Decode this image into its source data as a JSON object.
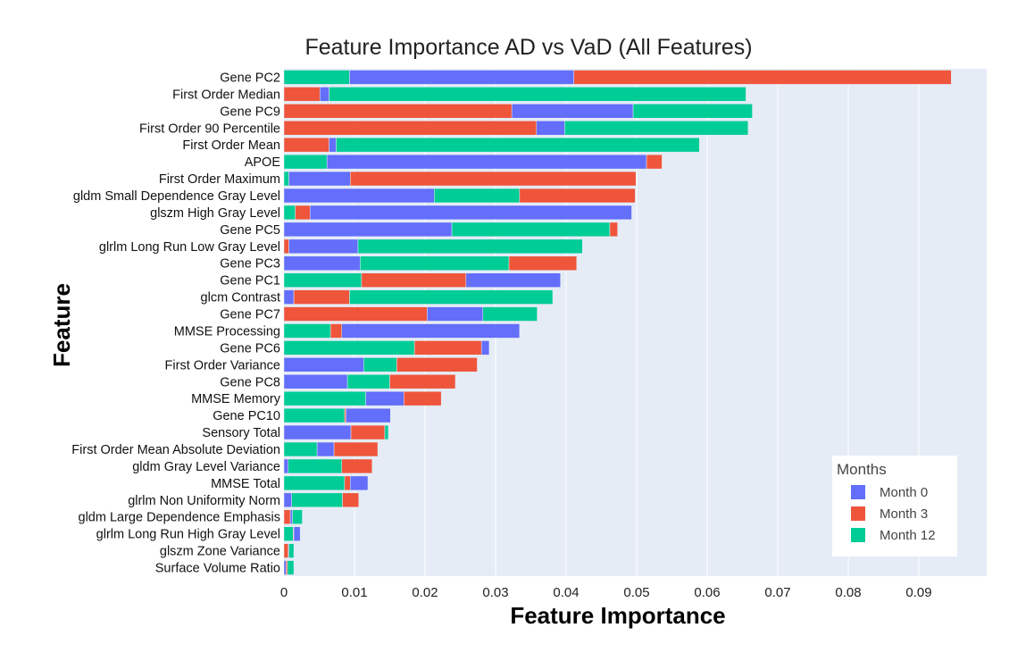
{
  "chart_data": {
    "type": "bar",
    "orientation": "horizontal",
    "stacked": true,
    "title": "Feature Importance AD vs VaD (All Features)",
    "xlabel": "Feature Importance",
    "ylabel": "Feature",
    "xlim": [
      0,
      0.1
    ],
    "x_ticks": [
      0,
      0.01,
      0.02,
      0.03,
      0.04,
      0.05,
      0.06,
      0.07,
      0.08,
      0.09
    ],
    "x_tick_labels": [
      "0",
      "0.01",
      "0.02",
      "0.03",
      "0.04",
      "0.05",
      "0.06",
      "0.07",
      "0.08",
      "0.09"
    ],
    "grid": true,
    "legend": {
      "title": "Months",
      "position": "bottom-right"
    },
    "categories": [
      "Gene PC2",
      "First Order Median",
      "Gene PC9",
      "First Order 90 Percentile",
      "First Order Mean",
      "APOE",
      "First Order Maximum",
      "gldm Small Dependence Gray Level",
      "glszm High Gray Level",
      "Gene PC5",
      "glrlm Long Run Low Gray Level",
      "Gene PC3",
      "Gene PC1",
      "glcm Contrast",
      "Gene PC7",
      "MMSE Processing",
      "Gene PC6",
      "First Order Variance",
      "Gene PC8",
      "MMSE Memory",
      "Gene PC10",
      "Sensory Total",
      "First Order Mean Absolute Deviation",
      "gldm Gray Level Variance",
      "MMSE Total",
      "glrlm Non Uniformity Norm",
      "gldm Large Dependence Emphasis",
      "glrlm Long Run High Gray Level",
      "glszm Zone Variance",
      "Surface Volume Ratio"
    ],
    "series": [
      {
        "name": "Month 0",
        "color": "#636efa",
        "values": [
          0.0318,
          0.0013,
          0.0172,
          0.004,
          0.001,
          0.0453,
          0.0087,
          0.0213,
          0.0456,
          0.0238,
          0.0098,
          0.0108,
          0.0134,
          0.0014,
          0.0079,
          0.0252,
          0.0011,
          0.0113,
          0.009,
          0.0054,
          0.0063,
          0.0095,
          0.0024,
          0.0006,
          0.0025,
          0.0011,
          0.0003,
          0.0009,
          0.0001,
          0.0003
        ]
      },
      {
        "name": "Month 3",
        "color": "#ef553b",
        "values": [
          0.0535,
          0.0051,
          0.0323,
          0.0358,
          0.0064,
          0.0022,
          0.0405,
          0.0164,
          0.0021,
          0.0011,
          0.0007,
          0.0096,
          0.0148,
          0.0079,
          0.0203,
          0.0016,
          0.0095,
          0.0114,
          0.0093,
          0.0053,
          0.0002,
          0.0048,
          0.0062,
          0.0043,
          0.0008,
          0.0023,
          0.0009,
          0.0001,
          0.0006,
          0.0002
        ]
      },
      {
        "name": "Month 12",
        "color": "#00cc96",
        "values": [
          0.0093,
          0.0591,
          0.0169,
          0.026,
          0.0515,
          0.0061,
          0.0007,
          0.0121,
          0.0016,
          0.0224,
          0.0318,
          0.0211,
          0.011,
          0.0288,
          0.0077,
          0.0066,
          0.0185,
          0.0047,
          0.006,
          0.0116,
          0.0086,
          0.0005,
          0.0047,
          0.0076,
          0.0086,
          0.0072,
          0.0014,
          0.0013,
          0.0007,
          0.0009
        ]
      }
    ],
    "stack_order": [
      [
        "Month 12",
        "Month 0",
        "Month 3"
      ],
      [
        "Month 3",
        "Month 0",
        "Month 12"
      ],
      [
        "Month 3",
        "Month 0",
        "Month 12"
      ],
      [
        "Month 3",
        "Month 0",
        "Month 12"
      ],
      [
        "Month 3",
        "Month 0",
        "Month 12"
      ],
      [
        "Month 12",
        "Month 0",
        "Month 3"
      ],
      [
        "Month 12",
        "Month 0",
        "Month 3"
      ],
      [
        "Month 0",
        "Month 12",
        "Month 3"
      ],
      [
        "Month 12",
        "Month 3",
        "Month 0"
      ],
      [
        "Month 0",
        "Month 12",
        "Month 3"
      ],
      [
        "Month 3",
        "Month 0",
        "Month 12"
      ],
      [
        "Month 0",
        "Month 12",
        "Month 3"
      ],
      [
        "Month 12",
        "Month 3",
        "Month 0"
      ],
      [
        "Month 0",
        "Month 3",
        "Month 12"
      ],
      [
        "Month 3",
        "Month 0",
        "Month 12"
      ],
      [
        "Month 12",
        "Month 3",
        "Month 0"
      ],
      [
        "Month 12",
        "Month 3",
        "Month 0"
      ],
      [
        "Month 0",
        "Month 12",
        "Month 3"
      ],
      [
        "Month 0",
        "Month 12",
        "Month 3"
      ],
      [
        "Month 12",
        "Month 0",
        "Month 3"
      ],
      [
        "Month 12",
        "Month 3",
        "Month 0"
      ],
      [
        "Month 0",
        "Month 3",
        "Month 12"
      ],
      [
        "Month 12",
        "Month 0",
        "Month 3"
      ],
      [
        "Month 0",
        "Month 12",
        "Month 3"
      ],
      [
        "Month 12",
        "Month 3",
        "Month 0"
      ],
      [
        "Month 0",
        "Month 12",
        "Month 3"
      ],
      [
        "Month 3",
        "Month 0",
        "Month 12"
      ],
      [
        "Month 12",
        "Month 3",
        "Month 0"
      ],
      [
        "Month 3",
        "Month 0",
        "Month 12"
      ],
      [
        "Month 0",
        "Month 3",
        "Month 12"
      ]
    ]
  }
}
